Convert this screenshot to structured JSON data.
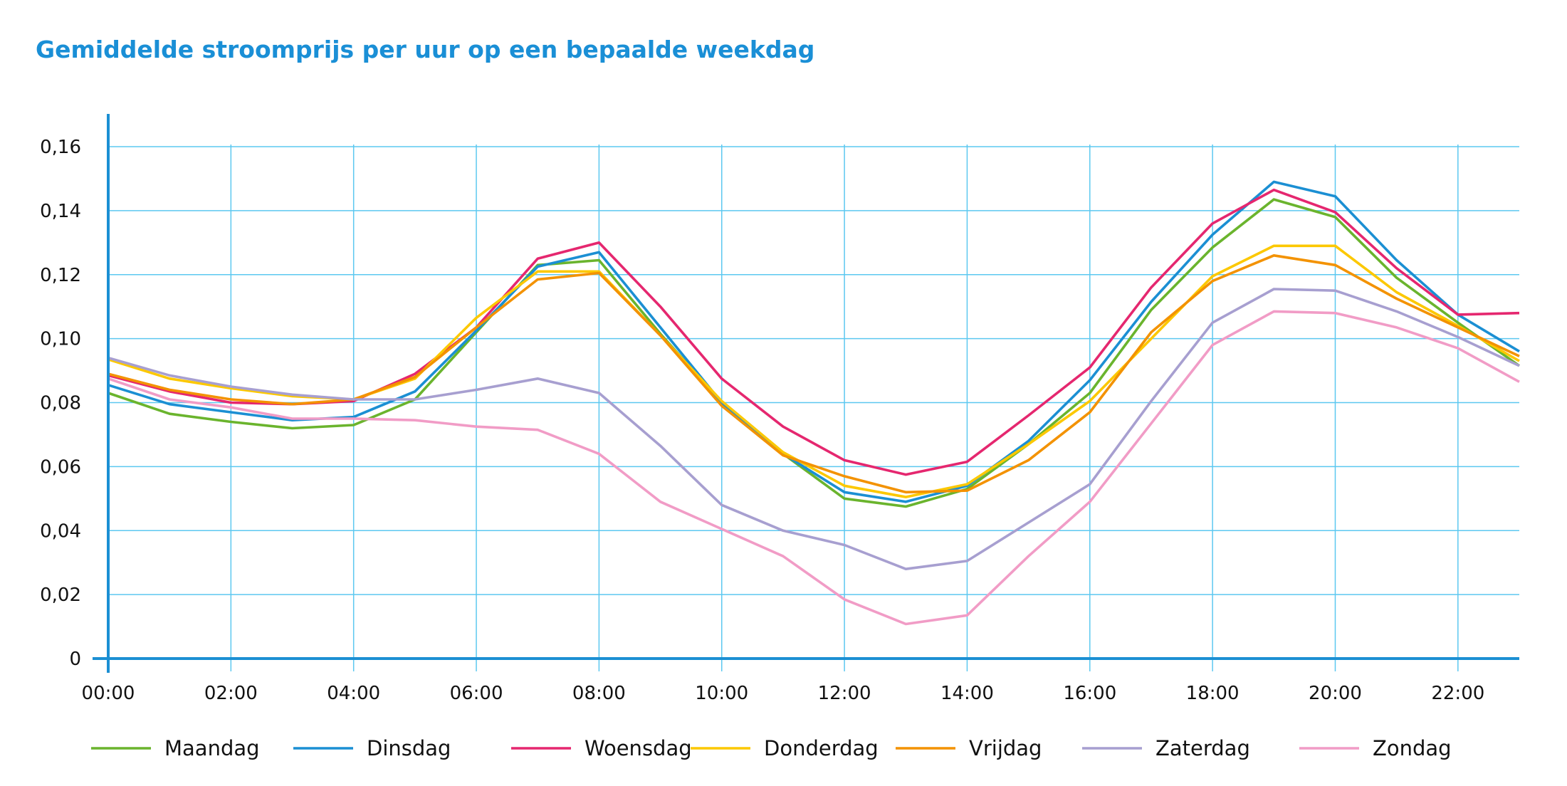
{
  "chart_data": {
    "type": "line",
    "title": "Gemiddelde stroomprijs per uur op een bepaalde weekdag",
    "xlabel": "",
    "ylabel": "",
    "x": [
      "00:00",
      "01:00",
      "02:00",
      "03:00",
      "04:00",
      "05:00",
      "06:00",
      "07:00",
      "08:00",
      "09:00",
      "10:00",
      "11:00",
      "12:00",
      "13:00",
      "14:00",
      "15:00",
      "16:00",
      "17:00",
      "18:00",
      "19:00",
      "20:00",
      "21:00",
      "22:00",
      "23:00"
    ],
    "x_tick_labels": [
      "00:00",
      "02:00",
      "04:00",
      "06:00",
      "08:00",
      "10:00",
      "12:00",
      "14:00",
      "16:00",
      "18:00",
      "20:00",
      "22:00"
    ],
    "y_tick_labels": [
      "0",
      "0,02",
      "0,04",
      "0,06",
      "0,08",
      "0,10",
      "0,12",
      "0,14",
      "0,16"
    ],
    "ylim": [
      0,
      0.16
    ],
    "grid": true,
    "legend_position": "bottom",
    "series": [
      {
        "name": "Maandag",
        "color": "#6ab42d",
        "values": [
          0.083,
          0.0765,
          0.074,
          0.072,
          0.073,
          0.081,
          0.102,
          0.123,
          0.1245,
          0.1015,
          0.08,
          0.064,
          0.05,
          0.0475,
          0.053,
          0.067,
          0.083,
          0.109,
          0.1285,
          0.1435,
          0.138,
          0.119,
          0.105,
          0.0915
        ]
      },
      {
        "name": "Dinsdag",
        "color": "#1b8fd3",
        "values": [
          0.0855,
          0.0795,
          0.077,
          0.0745,
          0.0755,
          0.0835,
          0.1025,
          0.1225,
          0.127,
          0.1035,
          0.08,
          0.064,
          0.052,
          0.049,
          0.054,
          0.068,
          0.087,
          0.1115,
          0.1325,
          0.149,
          0.1445,
          0.1245,
          0.1075,
          0.096
        ]
      },
      {
        "name": "Woensdag",
        "color": "#e5276f",
        "values": [
          0.0885,
          0.0835,
          0.08,
          0.0795,
          0.0805,
          0.089,
          0.1035,
          0.125,
          0.13,
          0.11,
          0.0875,
          0.0725,
          0.062,
          0.0575,
          0.0615,
          0.076,
          0.091,
          0.116,
          0.136,
          0.1465,
          0.1395,
          0.122,
          0.1075,
          0.108
        ]
      },
      {
        "name": "Donderdag",
        "color": "#fcc800",
        "values": [
          0.0935,
          0.0875,
          0.0845,
          0.082,
          0.081,
          0.0875,
          0.1065,
          0.121,
          0.121,
          0.101,
          0.0805,
          0.0645,
          0.054,
          0.0505,
          0.0545,
          0.067,
          0.0805,
          0.1,
          0.1195,
          0.129,
          0.129,
          0.1145,
          0.104,
          0.093
        ]
      },
      {
        "name": "Vrijdag",
        "color": "#f39200",
        "values": [
          0.089,
          0.084,
          0.081,
          0.0795,
          0.081,
          0.088,
          0.1035,
          0.1185,
          0.1205,
          0.101,
          0.079,
          0.0635,
          0.057,
          0.052,
          0.0525,
          0.062,
          0.077,
          0.102,
          0.118,
          0.126,
          0.123,
          0.1125,
          0.1035,
          0.0945
        ]
      },
      {
        "name": "Zaterdag",
        "color": "#a79fd0",
        "values": [
          0.094,
          0.0885,
          0.085,
          0.0825,
          0.081,
          0.081,
          0.084,
          0.0875,
          0.083,
          0.0665,
          0.048,
          0.04,
          0.0355,
          0.028,
          0.0305,
          0.0425,
          0.0545,
          0.0805,
          0.105,
          0.1155,
          0.115,
          0.1085,
          0.1005,
          0.0915
        ]
      },
      {
        "name": "Zondag",
        "color": "#f19cc6",
        "values": [
          0.0875,
          0.081,
          0.0785,
          0.075,
          0.075,
          0.0745,
          0.0725,
          0.0715,
          0.064,
          0.049,
          0.0405,
          0.032,
          0.0185,
          0.0108,
          0.0135,
          0.032,
          0.049,
          0.0735,
          0.098,
          0.1085,
          0.108,
          0.1035,
          0.097,
          0.0865
        ]
      }
    ]
  },
  "colors": {
    "title": "#1a8fd6",
    "axis": "#1b8fd3",
    "grid": "#5cc8f0"
  }
}
